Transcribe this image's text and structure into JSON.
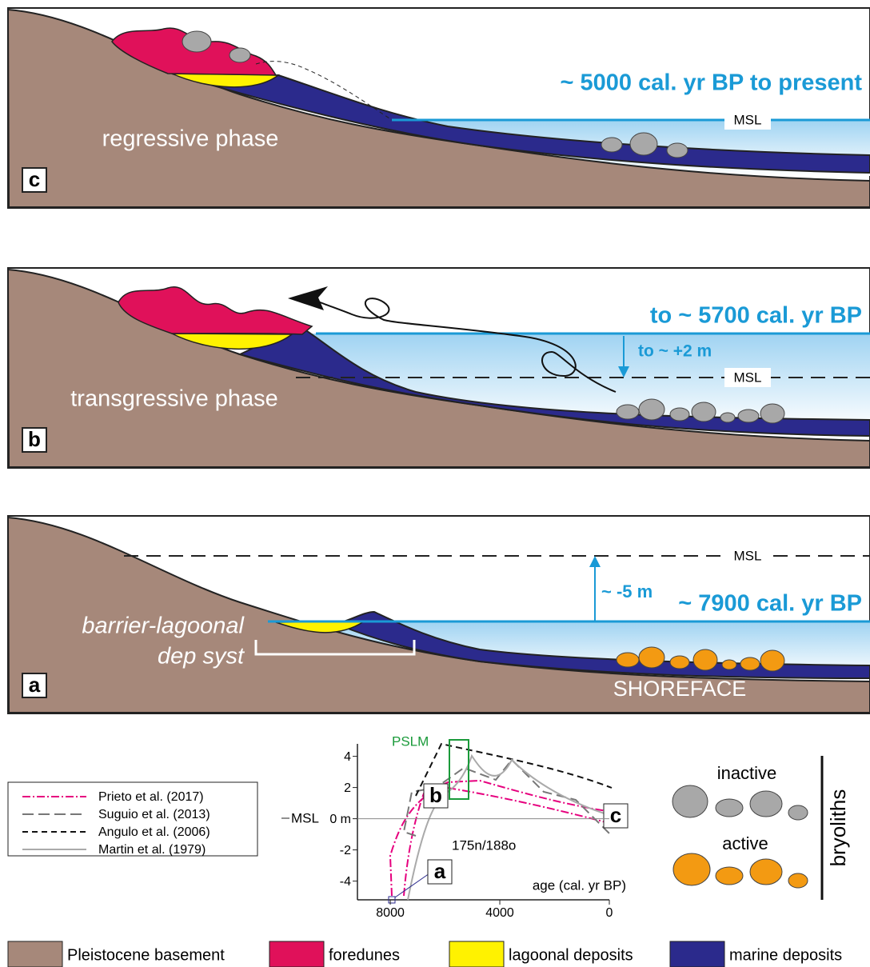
{
  "panel_c": {
    "label": "c",
    "phase": "regressive phase",
    "age": "~ 5000 cal. yr BP to present",
    "msl": "MSL"
  },
  "panel_b": {
    "label": "b",
    "phase": "transgressive phase",
    "age": "to ~ 5700 cal. yr BP",
    "sea_level_change": "to ~ +2 m",
    "msl": "MSL"
  },
  "panel_a": {
    "label": "a",
    "phase": [
      "barrier-lagoonal",
      "dep syst"
    ],
    "age": "~ 7900 cal. yr BP",
    "sea_level_change": "~ -5 m",
    "msl": "MSL",
    "zone": "SHOREFACE"
  },
  "inset": {
    "pslm": "PSLM",
    "msl": "MSL",
    "xlabel": "age (cal. yr BP)",
    "sample": "175n/188o",
    "markers": [
      "a",
      "b",
      "c"
    ],
    "xlim": [
      9200,
      0
    ],
    "ylim": [
      -5.2,
      4.8
    ],
    "xticks": [
      8000,
      4000,
      0
    ],
    "yticks": [
      4,
      2,
      {
        "value": 0,
        "label": "0 m"
      },
      -2,
      -4
    ],
    "legend": [
      {
        "name": "Prieto et al. (2017)",
        "color": "#e6007e"
      },
      {
        "name": "Suguio et al. (2013)",
        "color": "#777777"
      },
      {
        "name": "Angulo et al. (2006)",
        "color": "#111111"
      },
      {
        "name": "Martin et al. (1979)",
        "color": "#aaaaaa"
      }
    ]
  },
  "bryoliths": {
    "title": "bryoliths",
    "inactive": "inactive",
    "active": "active"
  },
  "legend": [
    {
      "name": "Pleistocene basement",
      "color": "#a6887a"
    },
    {
      "name": "foredunes",
      "color": "#e0115a"
    },
    {
      "name": "lagoonal deposits",
      "color": "#fff200"
    },
    {
      "name": "marine deposits",
      "color": "#2b2a8c"
    }
  ]
}
